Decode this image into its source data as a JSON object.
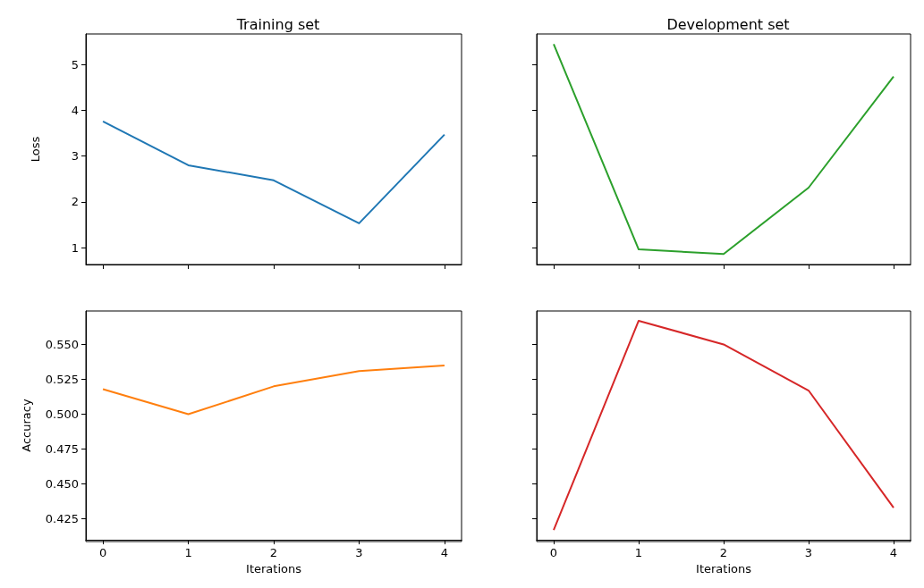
{
  "chart_data": [
    {
      "type": "line",
      "title": "Training set",
      "ylabel": "Loss",
      "x": [
        0,
        1,
        2,
        3,
        4
      ],
      "xlim": [
        -0.2,
        4.2
      ],
      "xticks": [
        0,
        1,
        2,
        3,
        4
      ],
      "ylim": [
        0.63,
        5.67
      ],
      "yticks": [
        1,
        2,
        3,
        4,
        5
      ],
      "tick_labels": "y",
      "series": [
        {
          "color": "#1f77b4",
          "values": [
            3.76,
            2.8,
            2.47,
            1.53,
            3.47
          ]
        }
      ]
    },
    {
      "type": "line",
      "title": "Development set",
      "x": [
        0,
        1,
        2,
        3,
        4
      ],
      "xlim": [
        -0.2,
        4.2
      ],
      "xticks": [
        0,
        1,
        2,
        3,
        4
      ],
      "ylim": [
        0.63,
        5.67
      ],
      "yticks": [
        1,
        2,
        3,
        4,
        5
      ],
      "tick_labels": false,
      "series": [
        {
          "color": "#2ca02c",
          "values": [
            5.45,
            0.96,
            0.86,
            2.31,
            4.74
          ]
        }
      ]
    },
    {
      "type": "line",
      "xlabel": "Iterations",
      "ylabel": "Accuracy",
      "x": [
        0,
        1,
        2,
        3,
        4
      ],
      "xlim": [
        -0.2,
        4.2
      ],
      "xticks": [
        0,
        1,
        2,
        3,
        4
      ],
      "ylim": [
        0.41,
        0.574
      ],
      "yticks": [
        {
          "value": 0.425,
          "label": "0.425"
        },
        {
          "value": 0.45,
          "label": "0.450"
        },
        {
          "value": 0.475,
          "label": "0.475"
        },
        {
          "value": 0.5,
          "label": "0.500"
        },
        {
          "value": 0.525,
          "label": "0.525"
        },
        {
          "value": 0.55,
          "label": "0.550"
        }
      ],
      "series": [
        {
          "color": "#ff7f0e",
          "values": [
            0.518,
            0.5,
            0.52,
            0.531,
            0.535
          ]
        }
      ]
    },
    {
      "type": "line",
      "xlabel": "Iterations",
      "x": [
        0,
        1,
        2,
        3,
        4
      ],
      "xlim": [
        -0.2,
        4.2
      ],
      "xticks": [
        0,
        1,
        2,
        3,
        4
      ],
      "ylim": [
        0.41,
        0.574
      ],
      "yticks": [
        0.425,
        0.45,
        0.475,
        0.5,
        0.525,
        0.55
      ],
      "tick_labels": "x",
      "series": [
        {
          "color": "#d62728",
          "values": [
            0.417,
            0.567,
            0.55,
            0.517,
            0.433
          ]
        }
      ]
    }
  ]
}
